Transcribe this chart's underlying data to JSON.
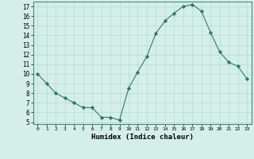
{
  "x": [
    0,
    1,
    2,
    3,
    4,
    5,
    6,
    7,
    8,
    9,
    10,
    11,
    12,
    13,
    14,
    15,
    16,
    17,
    18,
    19,
    20,
    21,
    22,
    23
  ],
  "y": [
    10,
    9,
    8,
    7.5,
    7,
    6.5,
    6.5,
    5.5,
    5.5,
    5.2,
    8.5,
    10.2,
    11.8,
    14.2,
    15.5,
    16.3,
    17.0,
    17.2,
    16.5,
    14.3,
    12.3,
    11.2,
    10.8,
    9.5
  ],
  "line_color": "#2d7a6a",
  "marker": "D",
  "marker_size": 2.2,
  "bg_color": "#d4eeea",
  "grid_color": "#b8dad4",
  "xlabel": "Humidex (Indice chaleur)",
  "xlim": [
    -0.5,
    23.5
  ],
  "ylim": [
    4.8,
    17.5
  ],
  "yticks": [
    5,
    6,
    7,
    8,
    9,
    10,
    11,
    12,
    13,
    14,
    15,
    16,
    17
  ],
  "xticks": [
    0,
    1,
    2,
    3,
    4,
    5,
    6,
    7,
    8,
    9,
    10,
    11,
    12,
    13,
    14,
    15,
    16,
    17,
    18,
    19,
    20,
    21,
    22,
    23
  ]
}
